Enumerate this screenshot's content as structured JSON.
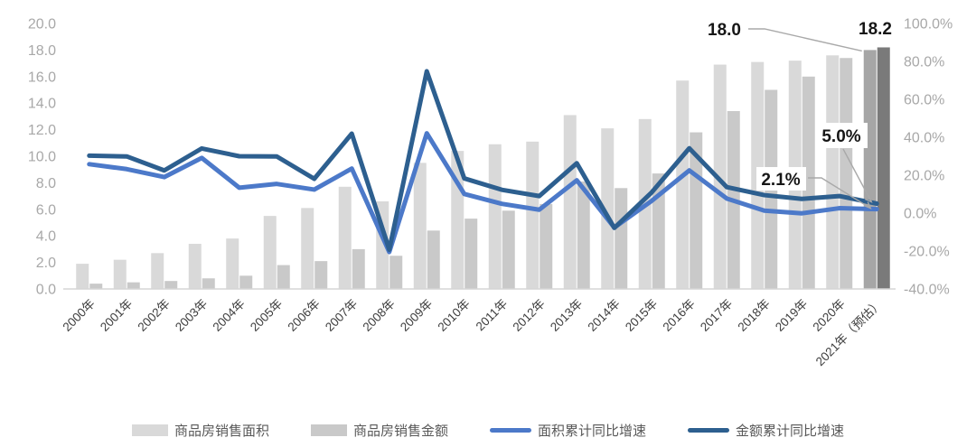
{
  "chart_data": {
    "type": "combo-bar-line",
    "title": "",
    "grid": false,
    "legend_position": "bottom",
    "highlight_category_index": 21,
    "categories": [
      "2000年",
      "2001年",
      "2002年",
      "2003年",
      "2004年",
      "2005年",
      "2006年",
      "2007年",
      "2008年",
      "2009年",
      "2010年",
      "2011年",
      "2012年",
      "2013年",
      "2014年",
      "2015年",
      "2016年",
      "2017年",
      "2018年",
      "2019年",
      "2020年",
      "2021年（预估）"
    ],
    "series": [
      {
        "name": "商品房销售面积",
        "type": "bar",
        "axis": "left",
        "color": "#D9D9D9",
        "highlight_color": "#A6A6A6",
        "values": [
          1.9,
          2.2,
          2.7,
          3.4,
          3.8,
          5.5,
          6.1,
          7.7,
          6.6,
          9.5,
          10.4,
          10.9,
          11.1,
          13.1,
          12.1,
          12.8,
          15.7,
          16.9,
          17.1,
          17.2,
          17.6,
          18.0
        ]
      },
      {
        "name": "商品房销售金额",
        "type": "bar",
        "axis": "left",
        "color": "#C9C9C9",
        "highlight_color": "#7A7A7A",
        "values": [
          0.4,
          0.5,
          0.6,
          0.8,
          1.0,
          1.8,
          2.1,
          3.0,
          2.5,
          4.4,
          5.3,
          5.9,
          6.4,
          8.1,
          7.6,
          8.7,
          11.8,
          13.4,
          15.0,
          16.0,
          17.4,
          18.2
        ]
      },
      {
        "name": "面积累计同比增速",
        "type": "line",
        "axis": "right",
        "color": "#4C79C9",
        "values": [
          25.8,
          23.2,
          19.0,
          29.1,
          13.4,
          15.4,
          12.4,
          23.5,
          -20.5,
          42.1,
          10.1,
          4.9,
          1.8,
          17.3,
          -7.6,
          6.5,
          22.5,
          7.7,
          1.3,
          -0.1,
          2.6,
          2.1
        ]
      },
      {
        "name": "金额累计同比增速",
        "type": "line",
        "axis": "right",
        "color": "#2D5F8F",
        "values": [
          30.3,
          29.9,
          22.5,
          34.1,
          30.0,
          29.9,
          18.1,
          41.9,
          -19.3,
          74.8,
          18.3,
          12.3,
          9.0,
          26.3,
          -7.8,
          11.0,
          34.2,
          13.7,
          9.5,
          7.5,
          9.0,
          5.0
        ]
      }
    ],
    "left_axis": {
      "min": 0,
      "max": 20,
      "ticks": [
        "20.0",
        "18.0",
        "16.0",
        "14.0",
        "12.0",
        "10.0",
        "8.0",
        "6.0",
        "4.0",
        "2.0",
        "0.0"
      ]
    },
    "right_axis": {
      "min": -40,
      "max": 100,
      "ticks": [
        "100.0%",
        "80.0%",
        "60.0%",
        "40.0%",
        "20.0%",
        "0.0%",
        "-20.0%",
        "-40.0%"
      ]
    },
    "annotations": [
      {
        "text": "18.0",
        "target": "2021-area-bar"
      },
      {
        "text": "18.2",
        "target": "2021-amount-bar"
      },
      {
        "text": "5.0%",
        "target": "2021-amount-growth-end"
      },
      {
        "text": "2.1%",
        "target": "2021-area-growth-end"
      }
    ],
    "annotation_color": "#161616",
    "leader_line_color": "#A9A9A9",
    "axis_tick_color": "#A8A8A8",
    "x_label_color": "#3D3D3D",
    "baseline_color": "#D6D6D6"
  }
}
